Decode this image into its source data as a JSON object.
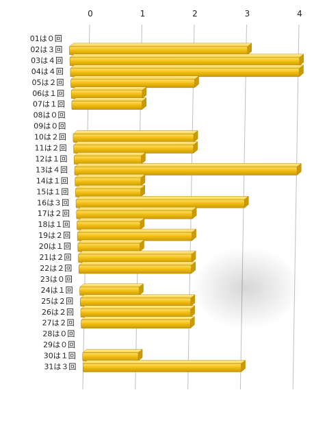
{
  "chart_data": {
    "type": "bar",
    "orientation": "horizontal",
    "style": "3d-perspective",
    "bar_color": "#F2BE12",
    "bar_edge_color": "#B8860B",
    "bar_highlight_color": "#FFE066",
    "grid_color": "#BFBFBF",
    "grid": true,
    "legend": "none",
    "xlim": [
      0,
      4
    ],
    "x_ticks": [
      "0",
      "1",
      "2",
      "3",
      "4"
    ],
    "categories": [
      "01は０回",
      "02は３回",
      "03は４回",
      "04は４回",
      "05は２回",
      "06は１回",
      "07は１回",
      "08は０回",
      "09は０回",
      "10は２回",
      "11は２回",
      "12は１回",
      "13は４回",
      "14は１回",
      "15は１回",
      "16は３回",
      "17は２回",
      "18は１回",
      "19は２回",
      "20は１回",
      "21は２回",
      "22は２回",
      "23は０回",
      "24は１回",
      "25は２回",
      "26は２回",
      "27は２回",
      "28は０回",
      "29は０回",
      "30は１回",
      "31は３回"
    ],
    "values": [
      0,
      3,
      4,
      4,
      2,
      1,
      1,
      0,
      0,
      2,
      2,
      1,
      4,
      1,
      1,
      3,
      2,
      1,
      2,
      1,
      2,
      2,
      0,
      1,
      2,
      2,
      2,
      0,
      0,
      1,
      3
    ]
  }
}
